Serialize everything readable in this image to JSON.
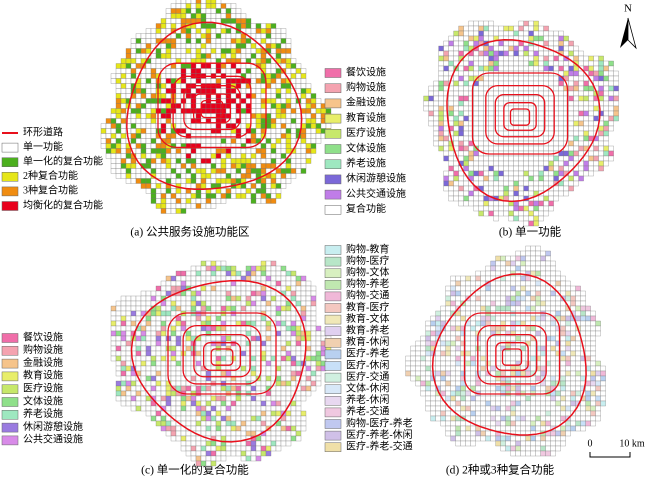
{
  "panels": [
    {
      "caption": "(a) 公共服务设施功能区",
      "legend": [
        {
          "label": "环形道路",
          "color": "#e8101c",
          "kind": "line"
        },
        {
          "label": "单一功能",
          "color": "#ffffff"
        },
        {
          "label": "单一化的复合功能",
          "color": "#4caf1e"
        },
        {
          "label": "2种复合功能",
          "color": "#e6e619"
        },
        {
          "label": "3种复合功能",
          "color": "#f08c10"
        },
        {
          "label": "均衡化的复合功能",
          "color": "#e8001c"
        }
      ]
    },
    {
      "caption": "(b) 单一功能",
      "legend": [
        {
          "label": "餐饮设施",
          "color": "#f06ea9"
        },
        {
          "label": "购物设施",
          "color": "#f4a3b0"
        },
        {
          "label": "金融设施",
          "color": "#f6c48b"
        },
        {
          "label": "教育设施",
          "color": "#e8ee6a"
        },
        {
          "label": "医疗设施",
          "color": "#c7e86b"
        },
        {
          "label": "文体设施",
          "color": "#8fe08a"
        },
        {
          "label": "养老设施",
          "color": "#9ee8c0"
        },
        {
          "label": "休闲游憩设施",
          "color": "#7b68d8"
        },
        {
          "label": "公共交通设施",
          "color": "#c07de8"
        },
        {
          "label": "复合功能",
          "color": "#ffffff"
        }
      ]
    },
    {
      "caption": "(c) 单一化的复合功能",
      "legend": [
        {
          "label": "餐饮设施",
          "color": "#f06ea9"
        },
        {
          "label": "购物设施",
          "color": "#f4a3b0"
        },
        {
          "label": "金融设施",
          "color": "#f6c48b"
        },
        {
          "label": "教育设施",
          "color": "#e8ee6a"
        },
        {
          "label": "医疗设施",
          "color": "#c7e86b"
        },
        {
          "label": "文体设施",
          "color": "#8fe08a"
        },
        {
          "label": "养老设施",
          "color": "#9ee8c0"
        },
        {
          "label": "休闲游憩设施",
          "color": "#9a7be0"
        },
        {
          "label": "公共交通设施",
          "color": "#d88be8"
        }
      ]
    },
    {
      "caption": "(d) 2种或3种复合功能",
      "legend": [
        {
          "label": "购物-教育",
          "color": "#c8eef0"
        },
        {
          "label": "购物-医疗",
          "color": "#b8e6c8"
        },
        {
          "label": "购物-文体",
          "color": "#d8f0c0"
        },
        {
          "label": "购物-养老",
          "color": "#c0e8b0"
        },
        {
          "label": "购物-交通",
          "color": "#f0b8d8"
        },
        {
          "label": "教育-医疗",
          "color": "#f4c8c0"
        },
        {
          "label": "教育-文体",
          "color": "#f0e8b8"
        },
        {
          "label": "教育-养老",
          "color": "#e0d0f0"
        },
        {
          "label": "教育-休闲",
          "color": "#f0d0b0"
        },
        {
          "label": "医疗-养老",
          "color": "#b8d0f0"
        },
        {
          "label": "医疗-休闲",
          "color": "#c8e0f8"
        },
        {
          "label": "医疗-交通",
          "color": "#d0f0e0"
        },
        {
          "label": "文体-休闲",
          "color": "#d8e8f8"
        },
        {
          "label": "养老-休闲",
          "color": "#e8d8f0"
        },
        {
          "label": "养老-交通",
          "color": "#f0c8e0"
        },
        {
          "label": "购物-医疗-养老",
          "color": "#c0c8f0"
        },
        {
          "label": "医疗-养老-休闲",
          "color": "#d0c0e8"
        },
        {
          "label": "医疗-养老-交通",
          "color": "#f0e0a8"
        }
      ]
    }
  ],
  "north": "N",
  "scale": {
    "start": "0",
    "end": "10 km"
  }
}
